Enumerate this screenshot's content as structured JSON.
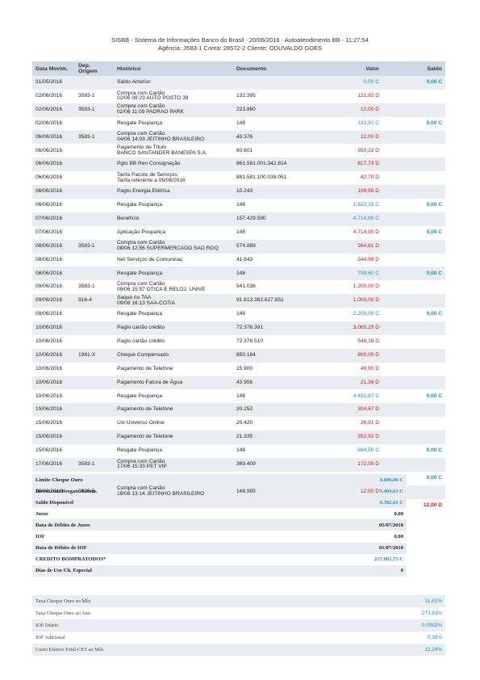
{
  "header": {
    "line1": "SISBB - Sistema de Informações Banco do Brasil - 20/06/2016 - Autoatendimento BB - 11:27:54",
    "line2": "Agência: 3583-1   Conta: 28572-2   Cliente: ODUVALDO GOES"
  },
  "columns": {
    "date": "Data Movim.",
    "origin_1": "Dep.",
    "origin_2": "Origem",
    "history": "Histórico",
    "document": "Documento",
    "value": "Valor",
    "balance": "Saldo"
  },
  "rows": [
    {
      "date": "31/05/2016",
      "origin": "",
      "h1": "Saldo Anterior",
      "h2": "",
      "doc": "",
      "value": "0,00 C",
      "vtype": "C",
      "balance": "0,00 C"
    },
    {
      "date": "02/06/2016",
      "origin": "3583-1",
      "h1": "Compra com Cartão",
      "h2": "02/06 08:23 AUTO POSTO 39",
      "doc": "132.395",
      "value": "121,92 D",
      "vtype": "D",
      "balance": ""
    },
    {
      "date": "02/06/2016",
      "origin": "3583-1",
      "h1": "Compra com Cartão",
      "h2": "02/06 11:09 PADRAO PARK",
      "doc": "223.860",
      "value": "12,00 D",
      "vtype": "D",
      "balance": ""
    },
    {
      "date": "02/06/2016",
      "origin": "",
      "h1": "Resgate Poupança",
      "h2": "",
      "doc": "148",
      "value": "133,92 C",
      "vtype": "C",
      "balance": "0,00 C"
    },
    {
      "date": "06/06/2016",
      "origin": "3583-1",
      "h1": "Compra com Cartão",
      "h2": "04/06 14:03 JEITINHO BRASILEIRO",
      "doc": "43.376",
      "value": "12,00 D",
      "vtype": "D",
      "balance": ""
    },
    {
      "date": "06/06/2016",
      "origin": "",
      "h1": "Pagamento de Título",
      "h2": "BANCO SANTANDER BANESPA S.A.",
      "doc": "60.601",
      "value": "550,22 D",
      "vtype": "D",
      "balance": ""
    },
    {
      "date": "06/06/2016",
      "origin": "",
      "h1": "Pgto BB Ren Consignação",
      "h2": "",
      "doc": "861.581.001.342.814",
      "value": "817,73 D",
      "vtype": "D",
      "balance": ""
    },
    {
      "date": "06/06/2016",
      "origin": "",
      "h1": "Tarifa Pacote de Serviços",
      "h2": "Tarifa referente a 06/06/2016",
      "doc": "881.581.100.038.051",
      "value": "42,70 D",
      "vtype": "D",
      "balance": ""
    },
    {
      "date": "06/06/2016",
      "origin": "",
      "h1": "Pagto Energia Elétrica",
      "h2": "",
      "doc": "10.243",
      "value": "199,50 D",
      "vtype": "D",
      "balance": ""
    },
    {
      "date": "06/06/2016",
      "origin": "",
      "h1": "Resgate Poupança",
      "h2": "",
      "doc": "148",
      "value": "1.622,15 C",
      "vtype": "C",
      "balance": "0,00 C"
    },
    {
      "date": "07/06/2016",
      "origin": "",
      "h1": "Benefício",
      "h2": "",
      "doc": "157.429.590",
      "value": "4.714,90 C",
      "vtype": "C",
      "balance": ""
    },
    {
      "date": "07/06/2016",
      "origin": "",
      "h1": "Aplicação Poupança",
      "h2": "",
      "doc": "148",
      "value": "4.714,90 D",
      "vtype": "D",
      "balance": "0,00 C"
    },
    {
      "date": "08/06/2016",
      "origin": "3583-1",
      "h1": "Compra com Cartão",
      "h2": "08/06 12:56 SUPERMERCADO SAO ROQ",
      "doc": "574.889",
      "value": "364,61 D",
      "vtype": "D",
      "balance": ""
    },
    {
      "date": "08/06/2016",
      "origin": "",
      "h1": "Net Serviços de Comunicaç",
      "h2": "",
      "doc": "41.843",
      "value": "344,99 D",
      "vtype": "D",
      "balance": ""
    },
    {
      "date": "08/06/2016",
      "origin": "",
      "h1": "Resgate Poupança",
      "h2": "",
      "doc": "148",
      "value": "709,60 C",
      "vtype": "C",
      "balance": "0,00 C"
    },
    {
      "date": "09/06/2016",
      "origin": "3583-1",
      "h1": "Compra com Cartão",
      "h2": "09/06 15:57 OTICA E RELOJ. UNIVE",
      "doc": "541.036",
      "value": "1.200,00 D",
      "vtype": "D",
      "balance": ""
    },
    {
      "date": "09/06/2016",
      "origin": "916-4",
      "h1": "Saque no TAA",
      "h2": "09/06 16:13 SAA-COTIA",
      "doc": "91.613.382.627.851",
      "value": "1.000,00 D",
      "vtype": "D",
      "balance": ""
    },
    {
      "date": "09/06/2016",
      "origin": "",
      "h1": "Resgate Poupança",
      "h2": "",
      "doc": "148",
      "value": "2.200,00 C",
      "vtype": "C",
      "balance": "0,00 C"
    },
    {
      "date": "10/06/2016",
      "origin": "",
      "h1": "Pagto cartão crédito",
      "h2": "",
      "doc": "72.376.391",
      "value": "3.065,25 D",
      "vtype": "D",
      "balance": ""
    },
    {
      "date": "10/06/2016",
      "origin": "",
      "h1": "Pagto cartão crédito",
      "h2": "",
      "doc": "72.376.510",
      "value": "546,16 D",
      "vtype": "D",
      "balance": ""
    },
    {
      "date": "10/06/2016",
      "origin": "1981-X",
      "h1": "Cheque Compensado",
      "h2": "",
      "doc": "850.184",
      "value": "800,00 D",
      "vtype": "D",
      "balance": ""
    },
    {
      "date": "10/06/2016",
      "origin": "",
      "h1": "Pagamento de Telefone",
      "h2": "",
      "doc": "15.900",
      "value": "49,90 D",
      "vtype": "D",
      "balance": ""
    },
    {
      "date": "10/06/2016",
      "origin": "",
      "h1": "Pagamento Fatura de Água",
      "h2": "",
      "doc": "43.956",
      "value": "21,36 D",
      "vtype": "D",
      "balance": ""
    },
    {
      "date": "10/06/2016",
      "origin": "",
      "h1": "Resgate Poupança",
      "h2": "",
      "doc": "148",
      "value": "4.482,67 C",
      "vtype": "C",
      "balance": "0,00 C"
    },
    {
      "date": "15/06/2016",
      "origin": "",
      "h1": "Pagamento de Telefone",
      "h2": "",
      "doc": "20.252",
      "value": "304,67 D",
      "vtype": "D",
      "balance": ""
    },
    {
      "date": "15/06/2016",
      "origin": "",
      "h1": "Uol Universo Online",
      "h2": "",
      "doc": "20.420",
      "value": "26,91 D",
      "vtype": "D",
      "balance": ""
    },
    {
      "date": "15/06/2016",
      "origin": "",
      "h1": "Pagamento de Telefone",
      "h2": "",
      "doc": "21.335",
      "value": "352,92 D",
      "vtype": "D",
      "balance": ""
    },
    {
      "date": "15/06/2016",
      "origin": "",
      "h1": "Resgate Poupança",
      "h2": "",
      "doc": "148",
      "value": "684,50 C",
      "vtype": "C",
      "balance": "0,00 C"
    },
    {
      "date": "17/06/2016",
      "origin": "3583-1",
      "h1": "Compra com Cartão",
      "h2": "17/06 15:33 PET VIP",
      "doc": "389.409",
      "value": "172,00 D",
      "vtype": "D",
      "balance": ""
    },
    {
      "date": "17/06/2016",
      "origin": "",
      "h1": "Resgate Poupança",
      "h2": "",
      "doc": "148",
      "value": "172,00 C",
      "vtype": "C",
      "balance": "0,00 C"
    },
    {
      "date": "20/06/2016",
      "origin": "9008-5",
      "h1": "Compra com Cartão",
      "h2": "18/06 13:14 JEITINHO BRASILEIRO",
      "doc": "148.995",
      "value": "12,00 D",
      "vtype": "D",
      "balance": ""
    },
    {
      "date": "20/06/2016",
      "origin": "",
      "h1": "S A L D O",
      "h2": "",
      "doc": "",
      "value": "",
      "vtype": "",
      "balance": "12,00 D",
      "btype": "D"
    }
  ],
  "summary": [
    {
      "label": "Limite Cheque Ouro",
      "value": "4.000,00 C",
      "vtype": "C"
    },
    {
      "label": "Invest.com Resgate Autom.",
      "value": "5.404,63 C",
      "vtype": "C"
    },
    {
      "label": "Saldo Disponível",
      "value": "9.392,63 C",
      "vtype": "C"
    },
    {
      "label": "Juros",
      "value": "0,00",
      "vtype": ""
    },
    {
      "label": "Data de Débito de Juros",
      "value": "05/07/2016",
      "vtype": ""
    },
    {
      "label": "IOF",
      "value": "0,00",
      "vtype": ""
    },
    {
      "label": "Data de Débito de IOF",
      "value": "01/07/2016",
      "vtype": ""
    },
    {
      "label": "CREDITO BOMPRATODOS*",
      "value": "217.005,75 C",
      "vtype": "C"
    },
    {
      "label": "Dias de Uso Ch. Especial",
      "value": "0",
      "vtype": ""
    }
  ],
  "rates": [
    {
      "label": "Taxa Cheque Ouro ao Mês",
      "value": "11,61%"
    },
    {
      "label": "Taxa Cheque Ouro ao Ano",
      "value": "273,63%"
    },
    {
      "label": "IOF Diário",
      "value": "0,0082%"
    },
    {
      "label": "IOF Adicional",
      "value": "0,38%"
    },
    {
      "label": "Custo Efetivo Total-CET ao Mês",
      "value": "12,24%"
    }
  ],
  "colors": {
    "credit": "#1a8fc7",
    "debit": "#d4120e",
    "header_bg": "#cfd9e6",
    "row_alt": "#e9edf2"
  }
}
